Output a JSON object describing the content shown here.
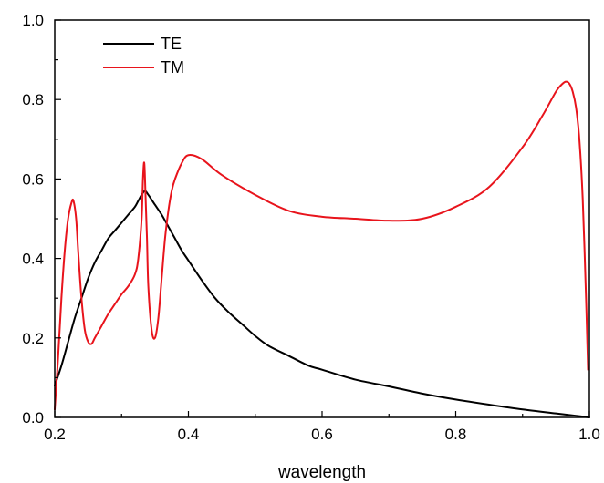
{
  "chart_data": {
    "type": "line",
    "title": "",
    "xlabel": "wavelength",
    "ylabel": "",
    "xlim": [
      0.2,
      1.0
    ],
    "ylim": [
      0.0,
      1.0
    ],
    "xticks": [
      0.2,
      0.4,
      0.6,
      0.8,
      1.0
    ],
    "xtick_labels": [
      "0.2",
      "0.4",
      "0.6",
      "0.8",
      "1.0"
    ],
    "yticks": [
      0.0,
      0.2,
      0.4,
      0.6,
      0.8,
      1.0
    ],
    "ytick_labels": [
      "0.0",
      "0.2",
      "0.4",
      "0.6",
      "0.8",
      "1.0"
    ],
    "grid": false,
    "legend_position": "top-left",
    "series": [
      {
        "name": "TE",
        "color": "#000000",
        "x": [
          0.2,
          0.21,
          0.22,
          0.23,
          0.24,
          0.25,
          0.26,
          0.27,
          0.28,
          0.29,
          0.3,
          0.31,
          0.32,
          0.325,
          0.33,
          0.335,
          0.34,
          0.35,
          0.36,
          0.37,
          0.38,
          0.39,
          0.4,
          0.42,
          0.44,
          0.46,
          0.48,
          0.5,
          0.52,
          0.55,
          0.58,
          0.6,
          0.65,
          0.7,
          0.75,
          0.8,
          0.85,
          0.9,
          0.95,
          0.98,
          1.0
        ],
        "y": [
          0.08,
          0.13,
          0.19,
          0.25,
          0.3,
          0.35,
          0.39,
          0.42,
          0.45,
          0.47,
          0.49,
          0.51,
          0.53,
          0.545,
          0.56,
          0.57,
          0.56,
          0.535,
          0.51,
          0.48,
          0.45,
          0.42,
          0.395,
          0.345,
          0.3,
          0.265,
          0.235,
          0.205,
          0.18,
          0.155,
          0.13,
          0.12,
          0.095,
          0.078,
          0.06,
          0.045,
          0.032,
          0.02,
          0.01,
          0.004,
          0.0
        ]
      },
      {
        "name": "TM",
        "color": "#e8141c",
        "x": [
          0.2,
          0.205,
          0.21,
          0.215,
          0.22,
          0.225,
          0.228,
          0.232,
          0.235,
          0.24,
          0.245,
          0.25,
          0.255,
          0.26,
          0.27,
          0.28,
          0.29,
          0.3,
          0.31,
          0.32,
          0.325,
          0.33,
          0.332,
          0.334,
          0.336,
          0.338,
          0.34,
          0.345,
          0.35,
          0.355,
          0.36,
          0.365,
          0.37,
          0.375,
          0.38,
          0.39,
          0.4,
          0.42,
          0.45,
          0.5,
          0.55,
          0.6,
          0.65,
          0.7,
          0.75,
          0.8,
          0.85,
          0.9,
          0.93,
          0.95,
          0.96,
          0.965,
          0.97,
          0.975,
          0.98,
          0.985,
          0.99,
          0.995,
          0.998
        ],
        "y": [
          0.02,
          0.15,
          0.3,
          0.42,
          0.5,
          0.54,
          0.545,
          0.5,
          0.42,
          0.3,
          0.22,
          0.19,
          0.185,
          0.2,
          0.23,
          0.26,
          0.285,
          0.31,
          0.33,
          0.36,
          0.4,
          0.5,
          0.6,
          0.64,
          0.55,
          0.45,
          0.33,
          0.22,
          0.2,
          0.25,
          0.35,
          0.45,
          0.52,
          0.57,
          0.6,
          0.64,
          0.66,
          0.65,
          0.61,
          0.56,
          0.52,
          0.505,
          0.5,
          0.495,
          0.5,
          0.53,
          0.58,
          0.68,
          0.76,
          0.82,
          0.84,
          0.845,
          0.84,
          0.82,
          0.78,
          0.7,
          0.55,
          0.3,
          0.12
        ]
      }
    ]
  }
}
